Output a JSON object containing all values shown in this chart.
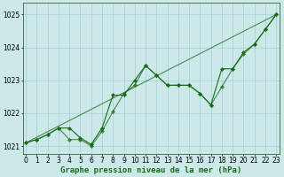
{
  "background_color": "#cce8e8",
  "grid_color": "#99cccc",
  "line_color": "#1a6b1a",
  "xlim": [
    -0.3,
    23.3
  ],
  "ylim": [
    1020.75,
    1025.35
  ],
  "yticks": [
    1021,
    1022,
    1023,
    1024,
    1025
  ],
  "xticks": [
    0,
    1,
    2,
    3,
    4,
    5,
    6,
    7,
    8,
    9,
    10,
    11,
    12,
    13,
    14,
    15,
    16,
    17,
    18,
    19,
    20,
    21,
    22,
    23
  ],
  "label_text": "Graphe pression niveau de la mer (hPa)",
  "tick_fontsize": 5.5,
  "xlabel_fontsize": 6.5,
  "series_straight1": {
    "x": [
      0,
      23
    ],
    "y": [
      1021.1,
      1025.0
    ]
  },
  "series_straight2": {
    "x": [
      0,
      23
    ],
    "y": [
      1021.1,
      1025.0
    ]
  },
  "series_jagged1": {
    "x": [
      0,
      1,
      2,
      3,
      4,
      5,
      6,
      7,
      8,
      9,
      10,
      11,
      12,
      13,
      14,
      15,
      16,
      17,
      18,
      19,
      20,
      21,
      22,
      23
    ],
    "y": [
      1021.1,
      1021.2,
      1021.35,
      1021.55,
      1021.2,
      1021.2,
      1021.0,
      1021.45,
      1022.05,
      1022.6,
      1022.85,
      1023.45,
      1023.15,
      1022.85,
      1022.85,
      1022.85,
      1022.6,
      1022.25,
      1022.8,
      1023.35,
      1023.8,
      1024.1,
      1024.55,
      1025.0
    ]
  },
  "series_jagged2": {
    "x": [
      0,
      1,
      2,
      3,
      4,
      5,
      6,
      7,
      8,
      9,
      10,
      11,
      12,
      13,
      14,
      15,
      16,
      17,
      18,
      19,
      20,
      21,
      22,
      23
    ],
    "y": [
      1021.1,
      1021.2,
      1021.35,
      1021.55,
      1021.55,
      1021.25,
      1021.05,
      1021.55,
      1022.55,
      1022.55,
      1023.0,
      1023.45,
      1023.15,
      1022.85,
      1022.85,
      1022.85,
      1022.6,
      1022.25,
      1023.35,
      1023.35,
      1023.85,
      1024.1,
      1024.55,
      1025.0
    ]
  }
}
